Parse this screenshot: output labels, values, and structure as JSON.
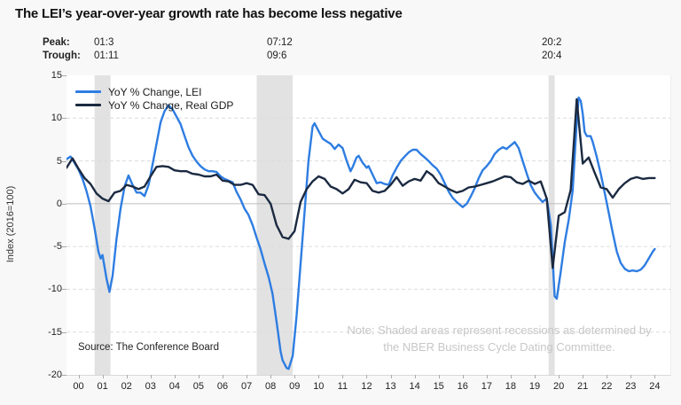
{
  "title": "The LEI’s year-over-year growth rate has become less negative",
  "annotations": {
    "peak_label": "Peak:",
    "trough_label": "Trough:",
    "recessions": [
      {
        "peak": "01:3",
        "trough": "01:11"
      },
      {
        "peak": "07:12",
        "trough": "09:6"
      },
      {
        "peak": "20:2",
        "trough": "20:4"
      }
    ]
  },
  "legend": [
    {
      "label": "YoY % Change, LEI",
      "color": "#2e7de2"
    },
    {
      "label": "YoY % Change, Real GDP",
      "color": "#1b2a41"
    }
  ],
  "y_axis": {
    "title": "Index (2016=100)",
    "ticks": [
      15,
      10,
      5,
      0,
      -5,
      -10,
      -15,
      -20
    ]
  },
  "x_axis": {
    "ticks": [
      "00",
      "01",
      "02",
      "03",
      "04",
      "05",
      "06",
      "07",
      "08",
      "09",
      "10",
      "11",
      "12",
      "13",
      "14",
      "15",
      "16",
      "17",
      "18",
      "19",
      "20",
      "21",
      "22",
      "23",
      "24"
    ]
  },
  "source": "Source: The Conference Board",
  "note": {
    "line1": "Note: Shaded areas represent recessions as determined by",
    "line2": "the NBER Business Cycle Dating Committee."
  },
  "colors": {
    "lei_line": "#2e7de2",
    "gdp_line": "#1b2a41",
    "recession_band": "#e2e2e2",
    "gridline": "#dcdcdc",
    "zero_line": "#bdbdbd",
    "note_text": "#c7c7c7"
  },
  "chart_data": {
    "type": "line",
    "title": "The LEI’s year-over-year growth rate has become less negative",
    "ylabel": "Index (2016=100)",
    "x_range": [
      2000.0,
      2025.15
    ],
    "y_range": [
      -20,
      15
    ],
    "grid": "horizontal-dashed",
    "legend_position": "top-left-inside",
    "recession_bands": [
      [
        2001.17,
        2001.83
      ],
      [
        2007.92,
        2009.42
      ],
      [
        2020.08,
        2020.33
      ]
    ],
    "series": [
      {
        "name": "YoY % Change, LEI",
        "color": "#2e7de2",
        "points": [
          [
            2000.0,
            5.2
          ],
          [
            2000.17,
            5.5
          ],
          [
            2000.33,
            4.8
          ],
          [
            2000.5,
            4.0
          ],
          [
            2000.67,
            2.9
          ],
          [
            2000.83,
            1.5
          ],
          [
            2001.0,
            -0.3
          ],
          [
            2001.17,
            -2.9
          ],
          [
            2001.33,
            -5.6
          ],
          [
            2001.42,
            -6.4
          ],
          [
            2001.5,
            -6.0
          ],
          [
            2001.67,
            -8.8
          ],
          [
            2001.79,
            -10.3
          ],
          [
            2001.92,
            -8.4
          ],
          [
            2002.08,
            -4.2
          ],
          [
            2002.25,
            -0.6
          ],
          [
            2002.42,
            2.0
          ],
          [
            2002.58,
            3.3
          ],
          [
            2002.75,
            2.2
          ],
          [
            2002.92,
            1.3
          ],
          [
            2003.08,
            1.3
          ],
          [
            2003.25,
            0.9
          ],
          [
            2003.42,
            2.2
          ],
          [
            2003.58,
            4.5
          ],
          [
            2003.75,
            7.0
          ],
          [
            2003.92,
            9.5
          ],
          [
            2004.08,
            10.8
          ],
          [
            2004.25,
            11.5
          ],
          [
            2004.42,
            11.0
          ],
          [
            2004.58,
            10.2
          ],
          [
            2004.75,
            9.3
          ],
          [
            2004.92,
            7.9
          ],
          [
            2005.08,
            6.6
          ],
          [
            2005.25,
            5.6
          ],
          [
            2005.42,
            4.9
          ],
          [
            2005.58,
            4.4
          ],
          [
            2005.75,
            4.0
          ],
          [
            2005.92,
            3.8
          ],
          [
            2006.08,
            3.8
          ],
          [
            2006.25,
            3.7
          ],
          [
            2006.42,
            3.2
          ],
          [
            2006.58,
            2.9
          ],
          [
            2006.75,
            2.7
          ],
          [
            2006.92,
            2.5
          ],
          [
            2007.08,
            1.4
          ],
          [
            2007.25,
            0.5
          ],
          [
            2007.42,
            -0.6
          ],
          [
            2007.58,
            -1.3
          ],
          [
            2007.75,
            -2.5
          ],
          [
            2007.92,
            -4.0
          ],
          [
            2008.08,
            -5.3
          ],
          [
            2008.25,
            -7.0
          ],
          [
            2008.42,
            -8.6
          ],
          [
            2008.58,
            -10.5
          ],
          [
            2008.75,
            -13.8
          ],
          [
            2008.92,
            -17.3
          ],
          [
            2009.0,
            -18.3
          ],
          [
            2009.17,
            -19.2
          ],
          [
            2009.25,
            -19.3
          ],
          [
            2009.42,
            -17.8
          ],
          [
            2009.58,
            -13.2
          ],
          [
            2009.75,
            -7.0
          ],
          [
            2009.92,
            -0.8
          ],
          [
            2010.08,
            5.0
          ],
          [
            2010.25,
            9.0
          ],
          [
            2010.33,
            9.4
          ],
          [
            2010.5,
            8.5
          ],
          [
            2010.67,
            7.6
          ],
          [
            2010.83,
            7.3
          ],
          [
            2011.0,
            7.0
          ],
          [
            2011.17,
            6.4
          ],
          [
            2011.33,
            6.9
          ],
          [
            2011.5,
            6.5
          ],
          [
            2011.67,
            5.0
          ],
          [
            2011.83,
            3.8
          ],
          [
            2011.92,
            4.3
          ],
          [
            2012.08,
            5.4
          ],
          [
            2012.17,
            5.6
          ],
          [
            2012.33,
            4.8
          ],
          [
            2012.5,
            4.2
          ],
          [
            2012.58,
            4.4
          ],
          [
            2012.75,
            3.4
          ],
          [
            2012.92,
            2.4
          ],
          [
            2013.08,
            2.5
          ],
          [
            2013.25,
            2.3
          ],
          [
            2013.42,
            2.2
          ],
          [
            2013.58,
            3.3
          ],
          [
            2013.75,
            4.2
          ],
          [
            2013.92,
            5.0
          ],
          [
            2014.08,
            5.5
          ],
          [
            2014.25,
            6.0
          ],
          [
            2014.42,
            6.3
          ],
          [
            2014.58,
            6.3
          ],
          [
            2014.75,
            5.8
          ],
          [
            2014.92,
            5.4
          ],
          [
            2015.08,
            5.0
          ],
          [
            2015.25,
            4.5
          ],
          [
            2015.42,
            4.1
          ],
          [
            2015.58,
            3.4
          ],
          [
            2015.75,
            2.4
          ],
          [
            2015.92,
            1.4
          ],
          [
            2016.08,
            0.7
          ],
          [
            2016.25,
            0.2
          ],
          [
            2016.42,
            -0.2
          ],
          [
            2016.5,
            -0.4
          ],
          [
            2016.67,
            0.0
          ],
          [
            2016.83,
            0.8
          ],
          [
            2017.0,
            1.8
          ],
          [
            2017.17,
            3.0
          ],
          [
            2017.33,
            3.9
          ],
          [
            2017.5,
            4.4
          ],
          [
            2017.67,
            5.0
          ],
          [
            2017.83,
            5.8
          ],
          [
            2018.0,
            6.3
          ],
          [
            2018.17,
            6.6
          ],
          [
            2018.33,
            6.4
          ],
          [
            2018.5,
            6.8
          ],
          [
            2018.67,
            7.2
          ],
          [
            2018.83,
            6.5
          ],
          [
            2019.0,
            5.0
          ],
          [
            2019.17,
            3.5
          ],
          [
            2019.33,
            2.2
          ],
          [
            2019.5,
            1.3
          ],
          [
            2019.67,
            0.7
          ],
          [
            2019.83,
            0.2
          ],
          [
            2020.0,
            0.6
          ],
          [
            2020.17,
            -2.5
          ],
          [
            2020.33,
            -10.8
          ],
          [
            2020.42,
            -11.1
          ],
          [
            2020.58,
            -8.0
          ],
          [
            2020.75,
            -4.5
          ],
          [
            2020.92,
            -1.8
          ],
          [
            2021.08,
            1.5
          ],
          [
            2021.25,
            9.5
          ],
          [
            2021.33,
            12.4
          ],
          [
            2021.42,
            12.0
          ],
          [
            2021.5,
            10.5
          ],
          [
            2021.58,
            8.4
          ],
          [
            2021.67,
            7.9
          ],
          [
            2021.83,
            7.9
          ],
          [
            2021.92,
            7.2
          ],
          [
            2022.08,
            5.5
          ],
          [
            2022.25,
            3.5
          ],
          [
            2022.42,
            1.2
          ],
          [
            2022.58,
            -1.0
          ],
          [
            2022.75,
            -3.4
          ],
          [
            2022.92,
            -5.6
          ],
          [
            2023.08,
            -6.9
          ],
          [
            2023.25,
            -7.6
          ],
          [
            2023.42,
            -7.9
          ],
          [
            2023.58,
            -7.8
          ],
          [
            2023.75,
            -7.9
          ],
          [
            2023.92,
            -7.7
          ],
          [
            2024.08,
            -7.2
          ],
          [
            2024.25,
            -6.4
          ],
          [
            2024.42,
            -5.6
          ],
          [
            2024.5,
            -5.3
          ]
        ]
      },
      {
        "name": "YoY % Change, Real GDP",
        "color": "#1b2a41",
        "points": [
          [
            2000.0,
            4.2
          ],
          [
            2000.25,
            5.3
          ],
          [
            2000.5,
            4.1
          ],
          [
            2000.75,
            3.0
          ],
          [
            2001.0,
            2.3
          ],
          [
            2001.25,
            1.2
          ],
          [
            2001.5,
            0.6
          ],
          [
            2001.75,
            0.3
          ],
          [
            2002.0,
            1.3
          ],
          [
            2002.25,
            1.5
          ],
          [
            2002.5,
            2.2
          ],
          [
            2002.75,
            2.0
          ],
          [
            2003.0,
            1.7
          ],
          [
            2003.25,
            2.0
          ],
          [
            2003.5,
            3.2
          ],
          [
            2003.75,
            4.3
          ],
          [
            2004.0,
            4.4
          ],
          [
            2004.25,
            4.3
          ],
          [
            2004.5,
            3.9
          ],
          [
            2004.75,
            3.8
          ],
          [
            2005.0,
            3.8
          ],
          [
            2005.25,
            3.5
          ],
          [
            2005.5,
            3.4
          ],
          [
            2005.75,
            3.2
          ],
          [
            2006.0,
            3.2
          ],
          [
            2006.25,
            3.4
          ],
          [
            2006.5,
            2.7
          ],
          [
            2006.75,
            2.6
          ],
          [
            2007.0,
            2.2
          ],
          [
            2007.25,
            2.2
          ],
          [
            2007.5,
            2.4
          ],
          [
            2007.75,
            2.2
          ],
          [
            2008.0,
            1.1
          ],
          [
            2008.25,
            1.0
          ],
          [
            2008.5,
            0.0
          ],
          [
            2008.75,
            -2.5
          ],
          [
            2009.0,
            -3.9
          ],
          [
            2009.25,
            -4.1
          ],
          [
            2009.5,
            -3.2
          ],
          [
            2009.75,
            0.2
          ],
          [
            2010.0,
            1.7
          ],
          [
            2010.25,
            2.6
          ],
          [
            2010.5,
            3.2
          ],
          [
            2010.75,
            2.9
          ],
          [
            2011.0,
            2.0
          ],
          [
            2011.25,
            1.7
          ],
          [
            2011.5,
            1.2
          ],
          [
            2011.75,
            1.7
          ],
          [
            2012.0,
            2.8
          ],
          [
            2012.25,
            2.5
          ],
          [
            2012.5,
            2.4
          ],
          [
            2012.75,
            1.5
          ],
          [
            2013.0,
            1.3
          ],
          [
            2013.25,
            1.5
          ],
          [
            2013.5,
            2.2
          ],
          [
            2013.75,
            3.1
          ],
          [
            2014.0,
            2.1
          ],
          [
            2014.25,
            2.6
          ],
          [
            2014.5,
            2.9
          ],
          [
            2014.75,
            2.7
          ],
          [
            2015.0,
            3.8
          ],
          [
            2015.25,
            3.3
          ],
          [
            2015.5,
            2.4
          ],
          [
            2015.75,
            2.0
          ],
          [
            2016.0,
            1.6
          ],
          [
            2016.25,
            1.3
          ],
          [
            2016.5,
            1.5
          ],
          [
            2016.75,
            1.9
          ],
          [
            2017.0,
            2.0
          ],
          [
            2017.25,
            2.2
          ],
          [
            2017.5,
            2.4
          ],
          [
            2017.75,
            2.6
          ],
          [
            2018.0,
            2.9
          ],
          [
            2018.25,
            3.2
          ],
          [
            2018.5,
            3.1
          ],
          [
            2018.75,
            2.5
          ],
          [
            2019.0,
            2.3
          ],
          [
            2019.25,
            2.7
          ],
          [
            2019.5,
            2.3
          ],
          [
            2019.75,
            2.6
          ],
          [
            2020.0,
            0.6
          ],
          [
            2020.25,
            -7.5
          ],
          [
            2020.5,
            -1.4
          ],
          [
            2020.75,
            -1.0
          ],
          [
            2021.0,
            1.6
          ],
          [
            2021.25,
            12.2
          ],
          [
            2021.5,
            4.7
          ],
          [
            2021.75,
            5.4
          ],
          [
            2022.0,
            3.6
          ],
          [
            2022.25,
            1.9
          ],
          [
            2022.5,
            1.7
          ],
          [
            2022.75,
            0.7
          ],
          [
            2023.0,
            1.7
          ],
          [
            2023.25,
            2.4
          ],
          [
            2023.5,
            2.9
          ],
          [
            2023.75,
            3.1
          ],
          [
            2024.0,
            2.9
          ],
          [
            2024.25,
            3.0
          ],
          [
            2024.5,
            3.0
          ]
        ]
      }
    ]
  }
}
